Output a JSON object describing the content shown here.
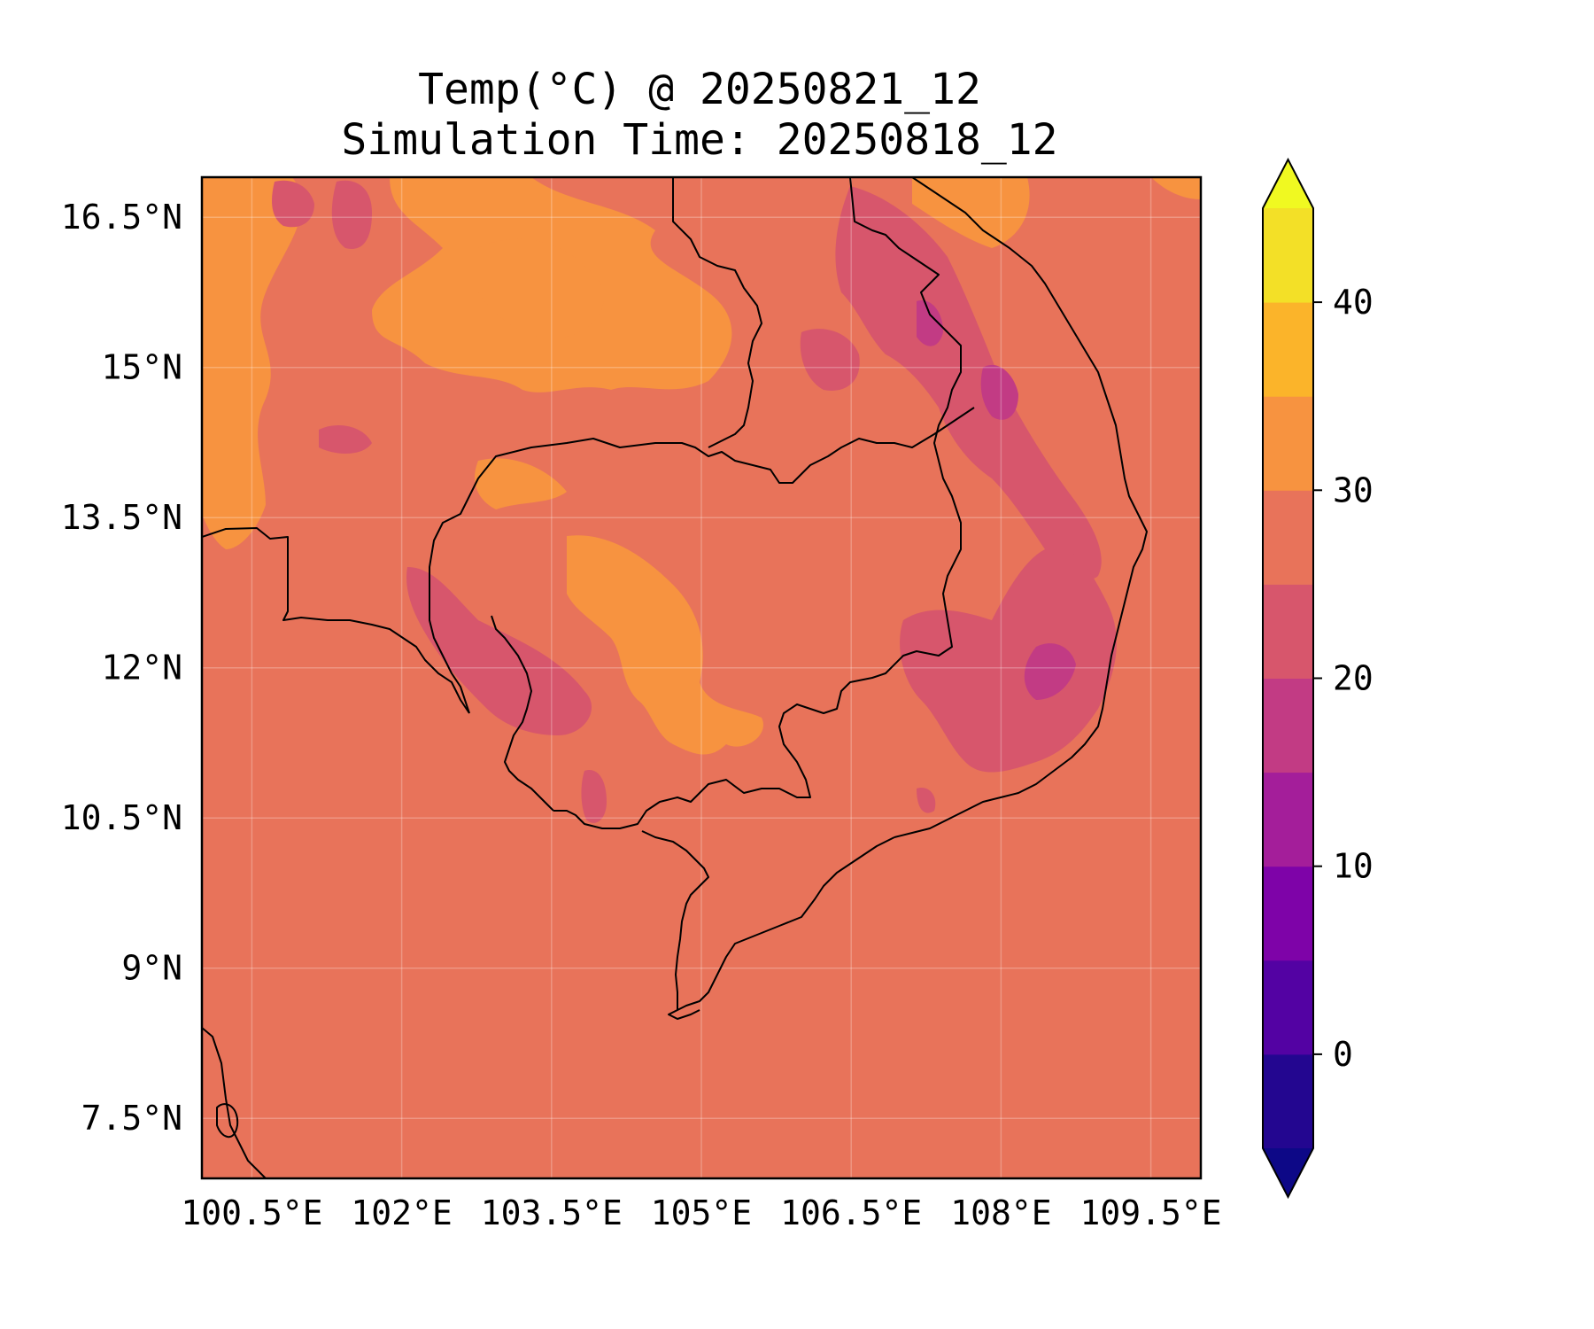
{
  "title": "Temp(°C) @ 20250821_12",
  "subtitle": "Simulation Time: 20250818_12",
  "map": {
    "lon_range": [
      100.0,
      110.0
    ],
    "lat_range": [
      6.9,
      16.9
    ],
    "lon_ticks": [
      {
        "value": 100.5,
        "label": "100.5°E"
      },
      {
        "value": 102.0,
        "label": "102°E"
      },
      {
        "value": 103.5,
        "label": "103.5°E"
      },
      {
        "value": 105.0,
        "label": "105°E"
      },
      {
        "value": 106.5,
        "label": "106.5°E"
      },
      {
        "value": 108.0,
        "label": "108°E"
      },
      {
        "value": 109.5,
        "label": "109.5°E"
      }
    ],
    "lat_ticks": [
      {
        "value": 16.5,
        "label": "16.5°N"
      },
      {
        "value": 15.0,
        "label": "15°N"
      },
      {
        "value": 13.5,
        "label": "13.5°N"
      },
      {
        "value": 12.0,
        "label": "12°N"
      },
      {
        "value": 10.5,
        "label": "10.5°N"
      },
      {
        "value": 9.0,
        "label": "9°N"
      },
      {
        "value": 7.5,
        "label": "7.5°N"
      }
    ],
    "background_color": "#e8735a",
    "gridlines": true
  },
  "colorbar": {
    "min": -5,
    "max": 45,
    "extend": "both",
    "levels": [
      {
        "from": -5,
        "to": 0,
        "color": "#230690"
      },
      {
        "from": 0,
        "to": 5,
        "color": "#5302a3"
      },
      {
        "from": 5,
        "to": 10,
        "color": "#7e03a8"
      },
      {
        "from": 10,
        "to": 15,
        "color": "#a41e9a"
      },
      {
        "from": 15,
        "to": 20,
        "color": "#c23b84"
      },
      {
        "from": 20,
        "to": 25,
        "color": "#d7566c"
      },
      {
        "from": 25,
        "to": 30,
        "color": "#e8735a"
      },
      {
        "from": 30,
        "to": 35,
        "color": "#f79340"
      },
      {
        "from": 35,
        "to": 40,
        "color": "#fbb42a"
      },
      {
        "from": 40,
        "to": 45,
        "color": "#f3e027"
      }
    ],
    "under_color": "#0d0887",
    "over_color": "#f0f921",
    "ticks": [
      {
        "value": 0,
        "label": "0"
      },
      {
        "value": 10,
        "label": "10"
      },
      {
        "value": 20,
        "label": "20"
      },
      {
        "value": 30,
        "label": "30"
      },
      {
        "value": 40,
        "label": "40"
      }
    ]
  }
}
